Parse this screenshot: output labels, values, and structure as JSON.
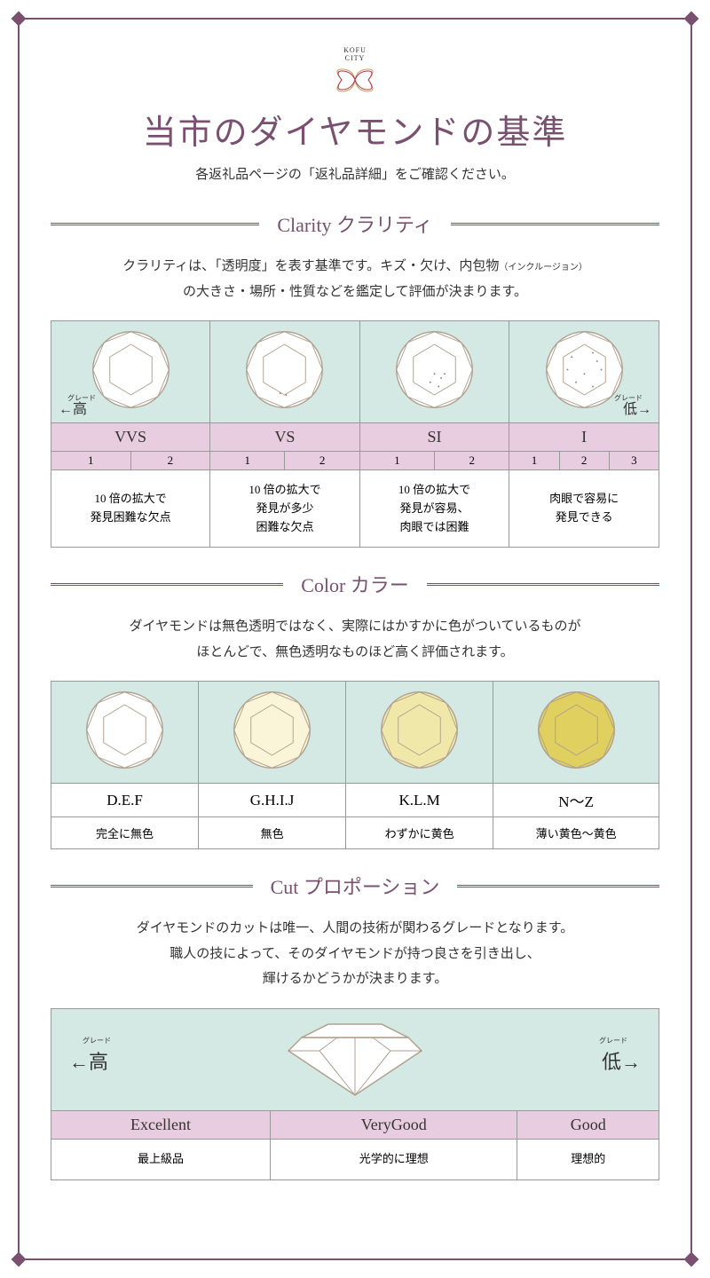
{
  "logo": {
    "line1": "KOFU",
    "line2": "CITY"
  },
  "main_title": "当市のダイヤモンドの基準",
  "subtitle": "各返礼品ページの「返礼品詳細」をご確認ください。",
  "colors": {
    "accent": "#7a5070",
    "table_bg_mint": "#d4e8e4",
    "table_bg_pink": "#e8cce0",
    "diamond_outline": "#b0a090"
  },
  "clarity": {
    "title": "Clarity クラリティ",
    "desc_line1": "クラリティは、「透明度」を表す基準です。キズ・欠け、内包物",
    "desc_small": "（インクルージョン）",
    "desc_line2": "の大きさ・場所・性質などを鑑定して評価が決まります。",
    "grade_high_ruby": "グレード",
    "grade_high": "←高",
    "grade_low_ruby": "グレード",
    "grade_low": "低→",
    "grades": [
      {
        "name": "VVS",
        "subs": [
          "1",
          "2"
        ],
        "desc": "10 倍の拡大で\n発見困難な欠点"
      },
      {
        "name": "VS",
        "subs": [
          "1",
          "2"
        ],
        "desc": "10 倍の拡大で\n発見が多少\n困難な欠点"
      },
      {
        "name": "SI",
        "subs": [
          "1",
          "2"
        ],
        "desc": "10 倍の拡大で\n発見が容易、\n肉眼では困難"
      },
      {
        "name": "I",
        "subs": [
          "1",
          "2",
          "3"
        ],
        "desc": "肉眼で容易に\n発見できる"
      }
    ]
  },
  "color": {
    "title": "Color カラー",
    "desc_line1": "ダイヤモンドは無色透明ではなく、実際にはかすかに色がついているものが",
    "desc_line2": "ほとんどで、無色透明なものほど高く評価されます。",
    "grades": [
      {
        "name": "D.E.F",
        "desc": "完全に無色",
        "fill": "#ffffff"
      },
      {
        "name": "G.H.I.J",
        "desc": "無色",
        "fill": "#faf5d8"
      },
      {
        "name": "K.L.M",
        "desc": "わずかに黄色",
        "fill": "#f0e8a8"
      },
      {
        "name": "N～Z",
        "desc": "薄い黄色～黄色",
        "fill": "#e0d060"
      }
    ]
  },
  "cut": {
    "title": "Cut プロポーション",
    "desc_line1": "ダイヤモンドのカットは唯一、人間の技術が関わるグレードとなります。",
    "desc_line2": "職人の技によって、そのダイヤモンドが持つ良さを引き出し、",
    "desc_line3": "輝けるかどうかが決まります。",
    "grade_high_ruby": "グレード",
    "grade_high": "←高",
    "grade_low_ruby": "グレード",
    "grade_low": "低→",
    "grades": [
      {
        "name": "Excellent",
        "desc": "最上級品"
      },
      {
        "name": "VeryGood",
        "desc": "光学的に理想"
      },
      {
        "name": "Good",
        "desc": "理想的"
      }
    ]
  }
}
